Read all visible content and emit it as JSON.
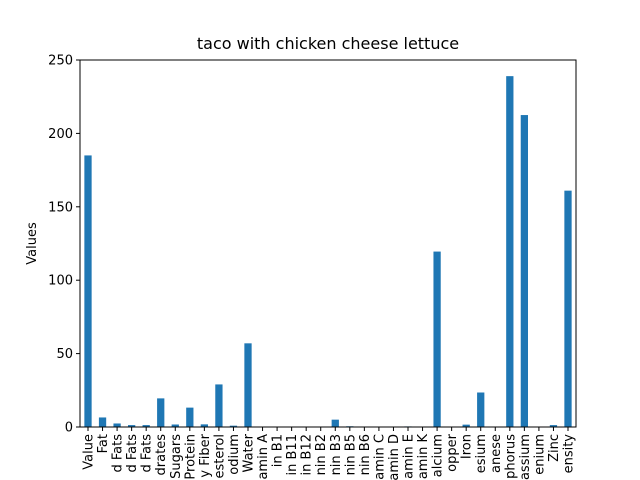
{
  "chart_data": {
    "type": "bar",
    "title": "taco with chicken cheese lettuce",
    "xlabel": "",
    "ylabel": "Values",
    "ylim": [
      0,
      250
    ],
    "yticks": [
      0,
      50,
      100,
      150,
      200,
      250
    ],
    "bar_color": "#1f77b4",
    "grid": false,
    "categories": [
      "Value",
      "Fat",
      "d Fats",
      "d Fats",
      "d Fats",
      "drates",
      "Sugars",
      "Protein",
      "y Fiber",
      "esterol",
      "odium",
      "Water",
      "amin A",
      "in B1",
      "in B11",
      "in B12",
      "nin B2",
      "nin B3",
      "nin B5",
      "nin B6",
      "amin C",
      "amin D",
      "amin E",
      "amin K",
      "alcium",
      "opper",
      "Iron",
      "esium",
      "anese",
      "phorus",
      "assium",
      "enium",
      "Zinc",
      "ensity"
    ],
    "values": [
      185,
      6.5,
      2.4,
      1.3,
      1.3,
      19.5,
      1.7,
      13.2,
      1.8,
      29,
      0.9,
      57,
      0.1,
      0.1,
      0.1,
      0.2,
      0.2,
      5,
      0.5,
      0.2,
      0.3,
      0.1,
      0.4,
      0.3,
      119.5,
      0.1,
      1.6,
      23.5,
      0.3,
      239,
      212.5,
      0.2,
      1.3,
      161
    ]
  }
}
